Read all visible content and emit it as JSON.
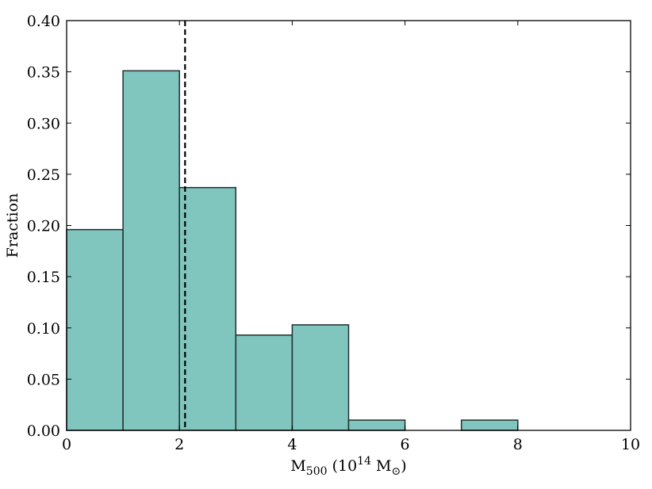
{
  "chart_data": {
    "type": "bar",
    "subtype": "histogram",
    "bin_edges": [
      0,
      1,
      2,
      3,
      4,
      5,
      6,
      7,
      8,
      9,
      10
    ],
    "values": [
      0.196,
      0.351,
      0.237,
      0.093,
      0.103,
      0.01,
      0.0,
      0.01,
      0.0,
      0.0
    ],
    "xlim": [
      0,
      10
    ],
    "ylim": [
      0,
      0.4
    ],
    "xticks": [
      0,
      2,
      4,
      6,
      8,
      10
    ],
    "xtick_labels": [
      "0",
      "2",
      "4",
      "6",
      "8",
      "10"
    ],
    "yticks": [
      0,
      0.05,
      0.1,
      0.15,
      0.2,
      0.25,
      0.3,
      0.35,
      0.4
    ],
    "ytick_labels": [
      "0.00",
      "0.05",
      "0.10",
      "0.15",
      "0.20",
      "0.25",
      "0.30",
      "0.35",
      "0.40"
    ],
    "xlabel": "M500 (10^14 M⊙)",
    "xlabel_parts": {
      "main": "M",
      "sub": "500",
      "open": " (10",
      "sup": "14",
      "unit": " M",
      "sun": "⊙",
      "close": ")"
    },
    "ylabel": "Fraction",
    "vline": {
      "x": 2.1,
      "style": "dashed",
      "color": "#000000"
    },
    "grid": false,
    "colors": {
      "bar_fill": "#80c6be",
      "bar_edge": "#1f2f2f",
      "axis": "#000000"
    }
  }
}
